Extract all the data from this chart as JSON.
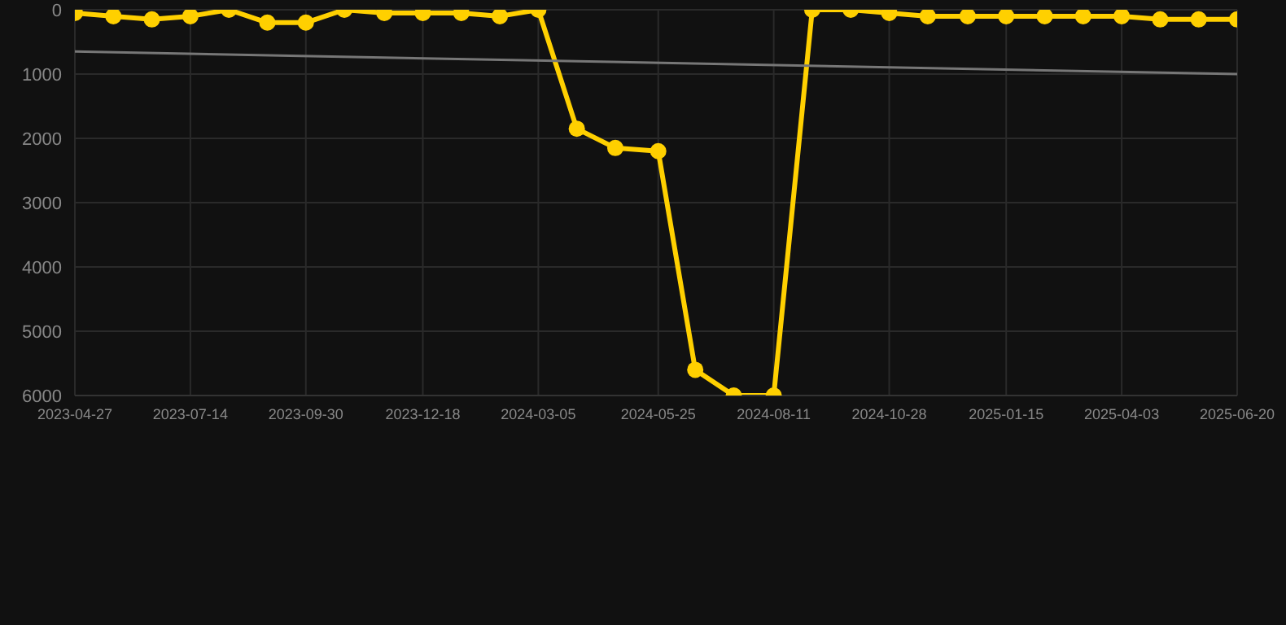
{
  "chart_data": {
    "type": "line",
    "ylim": [
      6000,
      0
    ],
    "yticks": [
      0,
      1000,
      2000,
      3000,
      4000,
      5000,
      6000
    ],
    "xlim": [
      "2023-04-27",
      "2025-06-20"
    ],
    "xticks": [
      "2023-04-27",
      "2023-07-14",
      "2023-09-30",
      "2023-12-18",
      "2024-03-05",
      "2024-05-25",
      "2024-08-11",
      "2024-10-28",
      "2025-01-15",
      "2025-04-03",
      "2025-06-20"
    ],
    "grid": true,
    "legend": false,
    "marker": "circle",
    "line_style": "solid",
    "series": [
      {
        "color": "#ffd000",
        "x": [
          "2023-04-27",
          "2023-05-23",
          "2023-06-18",
          "2023-07-14",
          "2023-08-09",
          "2023-09-04",
          "2023-09-30",
          "2023-10-26",
          "2023-11-22",
          "2023-12-18",
          "2024-01-13",
          "2024-02-08",
          "2024-03-05",
          "2024-03-31",
          "2024-04-26",
          "2024-05-25",
          "2024-06-19",
          "2024-07-15",
          "2024-08-11",
          "2024-09-06",
          "2024-10-02",
          "2024-10-28",
          "2024-11-23",
          "2024-12-20",
          "2025-01-15",
          "2025-02-10",
          "2025-03-08",
          "2025-04-03",
          "2025-04-29",
          "2025-05-25",
          "2025-06-20"
        ],
        "values": [
          50,
          100,
          150,
          100,
          0,
          200,
          200,
          0,
          50,
          50,
          50,
          100,
          0,
          1850,
          2150,
          2200,
          5600,
          6000,
          6000,
          0,
          0,
          50,
          100,
          100,
          100,
          100,
          100,
          100,
          150,
          150,
          150
        ]
      },
      {
        "type": "line",
        "color": "#777777",
        "marker": "none",
        "x": [
          "2023-04-27",
          "2025-06-20"
        ],
        "values": [
          650,
          1000
        ]
      }
    ]
  }
}
